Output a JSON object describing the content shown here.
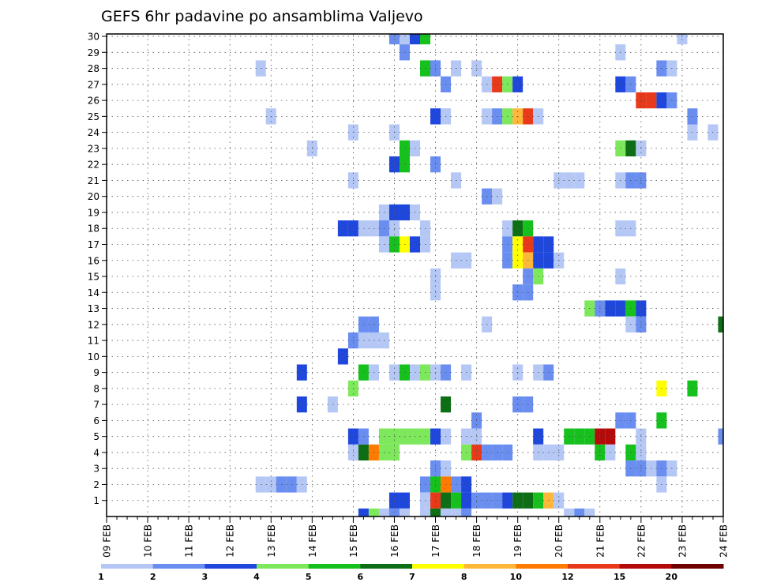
{
  "chart_data": {
    "type": "heatmap",
    "title": "GEFS 6hr padavine po ansamblima Valjevo",
    "xlabel": "",
    "ylabel": "",
    "x_ticks": [
      "09 FEB",
      "10 FEB",
      "11 FEB",
      "12 FEB",
      "13 FEB",
      "14 FEB",
      "15 FEB",
      "16 FEB",
      "17 FEB",
      "18 FEB",
      "19 FEB",
      "20 FEB",
      "21 FEB",
      "22 FEB",
      "23 FEB",
      "24 FEB"
    ],
    "y_ticks": [
      "1",
      "2",
      "3",
      "4",
      "5",
      "6",
      "7",
      "8",
      "9",
      "10",
      "11",
      "12",
      "13",
      "14",
      "15",
      "16",
      "17",
      "18",
      "19",
      "20",
      "21",
      "22",
      "23",
      "24",
      "25",
      "26",
      "27",
      "28",
      "29",
      "30"
    ],
    "xlim": [
      "09 FEB",
      "24 FEB"
    ],
    "ylim": [
      0,
      30
    ],
    "grid": true,
    "time_step_hours": 6,
    "colorbar": {
      "labels": [
        "1",
        "2",
        "3",
        "4",
        "5",
        "6",
        "7",
        "8",
        "10",
        "12",
        "15",
        "20"
      ],
      "colors": [
        "#b5c7f5",
        "#6a8ef0",
        "#1f47dc",
        "#7ee85c",
        "#16c01d",
        "#0d6e15",
        "#ffff00",
        "#ffb73a",
        "#ff7a00",
        "#e83a1b",
        "#b50a0a",
        "#6e0000"
      ]
    },
    "cells": [
      {
        "m": 30,
        "s": [
          [
            28,
            2
          ],
          [
            29,
            1
          ],
          [
            30,
            3
          ],
          [
            31,
            5
          ],
          [
            56,
            1
          ]
        ]
      },
      {
        "m": 29,
        "s": [
          [
            29,
            2
          ],
          [
            50,
            1
          ]
        ]
      },
      {
        "m": 28,
        "s": [
          [
            15,
            1
          ],
          [
            31,
            5
          ],
          [
            32,
            2
          ],
          [
            34,
            1
          ],
          [
            36,
            1
          ],
          [
            54,
            2
          ],
          [
            55,
            1
          ]
        ]
      },
      {
        "m": 27,
        "s": [
          [
            33,
            2
          ],
          [
            37,
            1
          ],
          [
            38,
            10
          ],
          [
            39,
            4
          ],
          [
            40,
            3
          ],
          [
            50,
            3
          ],
          [
            51,
            2
          ]
        ]
      },
      {
        "m": 26,
        "s": [
          [
            52,
            10
          ],
          [
            53,
            10
          ],
          [
            54,
            3
          ],
          [
            55,
            2
          ]
        ]
      },
      {
        "m": 25,
        "s": [
          [
            16,
            1
          ],
          [
            32,
            3
          ],
          [
            33,
            1
          ],
          [
            37,
            1
          ],
          [
            38,
            2
          ],
          [
            39,
            4
          ],
          [
            40,
            8
          ],
          [
            41,
            10
          ],
          [
            42,
            1
          ],
          [
            57,
            2
          ]
        ]
      },
      {
        "m": 24,
        "s": [
          [
            24,
            1
          ],
          [
            28,
            1
          ],
          [
            57,
            1
          ],
          [
            59,
            1
          ]
        ]
      },
      {
        "m": 23,
        "s": [
          [
            20,
            1
          ],
          [
            29,
            5
          ],
          [
            30,
            1
          ],
          [
            50,
            4
          ],
          [
            51,
            6
          ],
          [
            52,
            1
          ]
        ]
      },
      {
        "m": 22,
        "s": [
          [
            28,
            3
          ],
          [
            29,
            5
          ],
          [
            32,
            2
          ]
        ]
      },
      {
        "m": 21,
        "s": [
          [
            24,
            1
          ],
          [
            34,
            1
          ],
          [
            44,
            1
          ],
          [
            45,
            1
          ],
          [
            46,
            1
          ],
          [
            50,
            1
          ],
          [
            51,
            2
          ],
          [
            52,
            2
          ]
        ]
      },
      {
        "m": 20,
        "s": [
          [
            37,
            2
          ],
          [
            38,
            1
          ]
        ]
      },
      {
        "m": 19,
        "s": [
          [
            27,
            1
          ],
          [
            28,
            3
          ],
          [
            29,
            3
          ],
          [
            30,
            1
          ]
        ]
      },
      {
        "m": 18,
        "s": [
          [
            23,
            3
          ],
          [
            24,
            3
          ],
          [
            25,
            1
          ],
          [
            26,
            1
          ],
          [
            27,
            2
          ],
          [
            28,
            1
          ],
          [
            31,
            1
          ],
          [
            39,
            1
          ],
          [
            40,
            6
          ],
          [
            41,
            5
          ],
          [
            50,
            1
          ],
          [
            51,
            1
          ]
        ]
      },
      {
        "m": 17,
        "s": [
          [
            27,
            1
          ],
          [
            28,
            5
          ],
          [
            29,
            7
          ],
          [
            30,
            3
          ],
          [
            31,
            1
          ],
          [
            39,
            2
          ],
          [
            40,
            7
          ],
          [
            41,
            10
          ],
          [
            42,
            3
          ],
          [
            43,
            3
          ]
        ]
      },
      {
        "m": 16,
        "s": [
          [
            34,
            1
          ],
          [
            35,
            1
          ],
          [
            39,
            2
          ],
          [
            40,
            7
          ],
          [
            41,
            8
          ],
          [
            42,
            3
          ],
          [
            43,
            3
          ],
          [
            44,
            1
          ]
        ]
      },
      {
        "m": 15,
        "s": [
          [
            32,
            1
          ],
          [
            41,
            2
          ],
          [
            42,
            4
          ],
          [
            50,
            1
          ]
        ]
      },
      {
        "m": 14,
        "s": [
          [
            32,
            1
          ],
          [
            40,
            2
          ],
          [
            41,
            2
          ]
        ]
      },
      {
        "m": 13,
        "s": [
          [
            47,
            4
          ],
          [
            48,
            2
          ],
          [
            49,
            3
          ],
          [
            50,
            3
          ],
          [
            51,
            5
          ],
          [
            52,
            3
          ]
        ]
      },
      {
        "m": 12,
        "s": [
          [
            25,
            2
          ],
          [
            26,
            2
          ],
          [
            37,
            1
          ],
          [
            51,
            1
          ],
          [
            52,
            2
          ],
          [
            60,
            6
          ]
        ]
      },
      {
        "m": 11,
        "s": [
          [
            24,
            2
          ],
          [
            25,
            1
          ],
          [
            26,
            1
          ],
          [
            27,
            1
          ]
        ]
      },
      {
        "m": 10,
        "s": [
          [
            23,
            3
          ]
        ]
      },
      {
        "m": 9,
        "s": [
          [
            19,
            3
          ],
          [
            25,
            5
          ],
          [
            26,
            1
          ],
          [
            28,
            1
          ],
          [
            29,
            5
          ],
          [
            30,
            1
          ],
          [
            31,
            4
          ],
          [
            32,
            1
          ],
          [
            33,
            2
          ],
          [
            35,
            1
          ],
          [
            40,
            1
          ],
          [
            42,
            1
          ],
          [
            43,
            2
          ]
        ]
      },
      {
        "m": 8,
        "s": [
          [
            24,
            4
          ],
          [
            54,
            7
          ],
          [
            57,
            5
          ]
        ]
      },
      {
        "m": 7,
        "s": [
          [
            19,
            3
          ],
          [
            22,
            1
          ],
          [
            33,
            6
          ],
          [
            40,
            2
          ],
          [
            41,
            2
          ]
        ]
      },
      {
        "m": 6,
        "s": [
          [
            36,
            2
          ],
          [
            50,
            2
          ],
          [
            51,
            2
          ],
          [
            54,
            5
          ]
        ]
      },
      {
        "m": 5,
        "s": [
          [
            24,
            3
          ],
          [
            25,
            2
          ],
          [
            27,
            4
          ],
          [
            28,
            4
          ],
          [
            29,
            4
          ],
          [
            30,
            4
          ],
          [
            31,
            4
          ],
          [
            32,
            3
          ],
          [
            33,
            1
          ],
          [
            35,
            1
          ],
          [
            36,
            1
          ],
          [
            42,
            3
          ],
          [
            45,
            5
          ],
          [
            46,
            5
          ],
          [
            47,
            5
          ],
          [
            48,
            11
          ],
          [
            49,
            11
          ],
          [
            52,
            1
          ],
          [
            60,
            2
          ]
        ]
      },
      {
        "m": 4,
        "s": [
          [
            24,
            1
          ],
          [
            25,
            6
          ],
          [
            26,
            9
          ],
          [
            27,
            4
          ],
          [
            28,
            4
          ],
          [
            35,
            4
          ],
          [
            36,
            10
          ],
          [
            37,
            2
          ],
          [
            38,
            2
          ],
          [
            39,
            2
          ],
          [
            42,
            1
          ],
          [
            43,
            1
          ],
          [
            44,
            1
          ],
          [
            48,
            5
          ],
          [
            49,
            1
          ],
          [
            51,
            5
          ],
          [
            52,
            1
          ]
        ]
      },
      {
        "m": 3,
        "s": [
          [
            32,
            2
          ],
          [
            33,
            1
          ],
          [
            51,
            2
          ],
          [
            52,
            2
          ],
          [
            53,
            1
          ],
          [
            54,
            2
          ],
          [
            55,
            1
          ]
        ]
      },
      {
        "m": 2,
        "s": [
          [
            15,
            1
          ],
          [
            16,
            1
          ],
          [
            17,
            2
          ],
          [
            18,
            2
          ],
          [
            19,
            1
          ],
          [
            31,
            2
          ],
          [
            32,
            5
          ],
          [
            33,
            9
          ],
          [
            34,
            2
          ],
          [
            35,
            3
          ],
          [
            54,
            1
          ]
        ]
      },
      {
        "m": 1,
        "s": [
          [
            28,
            3
          ],
          [
            29,
            3
          ],
          [
            31,
            1
          ],
          [
            32,
            10
          ],
          [
            33,
            6
          ],
          [
            34,
            5
          ],
          [
            35,
            3
          ],
          [
            36,
            2
          ],
          [
            37,
            2
          ],
          [
            38,
            2
          ],
          [
            39,
            3
          ],
          [
            40,
            6
          ],
          [
            41,
            6
          ],
          [
            42,
            5
          ],
          [
            43,
            8
          ],
          [
            44,
            1
          ]
        ]
      },
      {
        "m": 0,
        "s": [
          [
            25,
            3
          ],
          [
            26,
            4
          ],
          [
            27,
            1
          ],
          [
            28,
            2
          ],
          [
            29,
            1
          ],
          [
            31,
            1
          ],
          [
            32,
            6
          ],
          [
            33,
            1
          ],
          [
            34,
            1
          ],
          [
            35,
            2
          ],
          [
            45,
            1
          ],
          [
            46,
            2
          ],
          [
            47,
            1
          ]
        ]
      }
    ]
  }
}
